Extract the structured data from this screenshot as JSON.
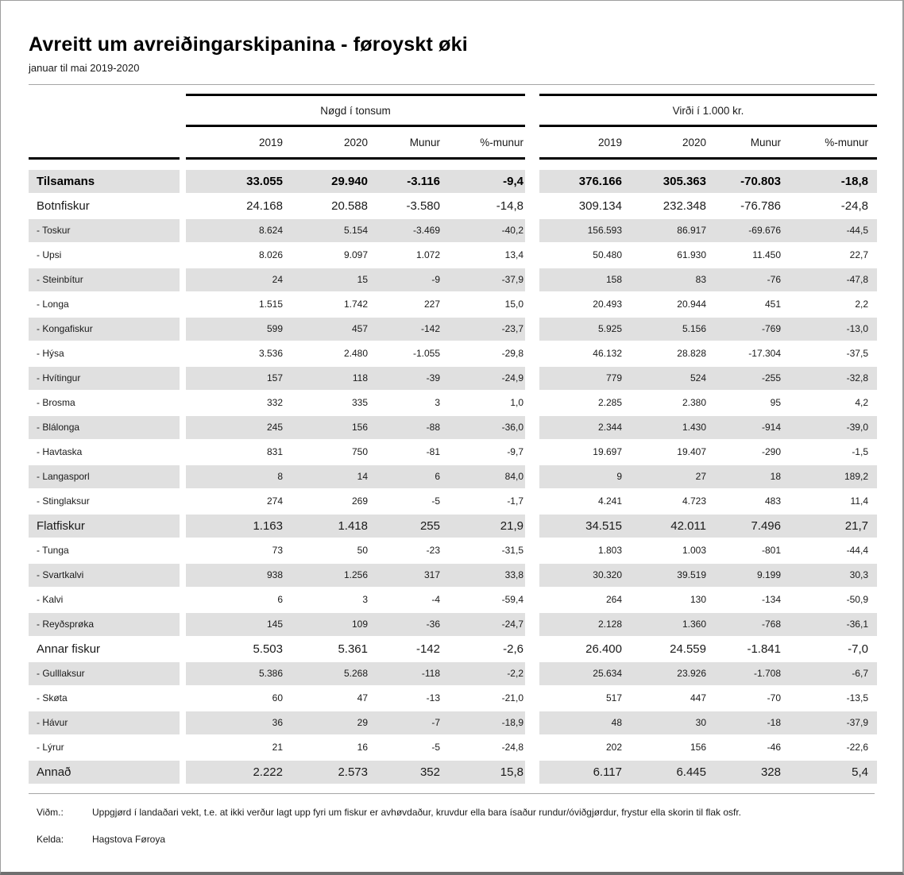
{
  "chart_data": {
    "type": "table",
    "title": "Avreitt um avreiðingarskipanina - føroyskt øki",
    "subtitle": "januar til mai 2019-2020",
    "column_groups": [
      {
        "label": "Nøgd í tonsum",
        "columns": [
          "2019",
          "2020",
          "Munur",
          "%-munur"
        ]
      },
      {
        "label": "Virði í 1.000 kr.",
        "columns": [
          "2019",
          "2020",
          "Munur",
          "%-munur"
        ]
      }
    ],
    "rows": [
      {
        "label": "Tilsamans",
        "level": "total",
        "values": [
          "33.055",
          "29.940",
          "-3.116",
          "-9,4",
          "376.166",
          "305.363",
          "-70.803",
          "-18,8"
        ]
      },
      {
        "label": "Botnfiskur",
        "level": "major",
        "values": [
          "24.168",
          "20.588",
          "-3.580",
          "-14,8",
          "309.134",
          "232.348",
          "-76.786",
          "-24,8"
        ]
      },
      {
        "label": "- Toskur",
        "level": "sub",
        "values": [
          "8.624",
          "5.154",
          "-3.469",
          "-40,2",
          "156.593",
          "86.917",
          "-69.676",
          "-44,5"
        ]
      },
      {
        "label": "- Upsi",
        "level": "sub",
        "values": [
          "8.026",
          "9.097",
          "1.072",
          "13,4",
          "50.480",
          "61.930",
          "11.450",
          "22,7"
        ]
      },
      {
        "label": "- Steinbítur",
        "level": "sub",
        "values": [
          "24",
          "15",
          "-9",
          "-37,9",
          "158",
          "83",
          "-76",
          "-47,8"
        ]
      },
      {
        "label": "- Longa",
        "level": "sub",
        "values": [
          "1.515",
          "1.742",
          "227",
          "15,0",
          "20.493",
          "20.944",
          "451",
          "2,2"
        ]
      },
      {
        "label": "- Kongafiskur",
        "level": "sub",
        "values": [
          "599",
          "457",
          "-142",
          "-23,7",
          "5.925",
          "5.156",
          "-769",
          "-13,0"
        ]
      },
      {
        "label": "- Hýsa",
        "level": "sub",
        "values": [
          "3.536",
          "2.480",
          "-1.055",
          "-29,8",
          "46.132",
          "28.828",
          "-17.304",
          "-37,5"
        ]
      },
      {
        "label": "- Hvítingur",
        "level": "sub",
        "values": [
          "157",
          "118",
          "-39",
          "-24,9",
          "779",
          "524",
          "-255",
          "-32,8"
        ]
      },
      {
        "label": "- Brosma",
        "level": "sub",
        "values": [
          "332",
          "335",
          "3",
          "1,0",
          "2.285",
          "2.380",
          "95",
          "4,2"
        ]
      },
      {
        "label": "- Blálonga",
        "level": "sub",
        "values": [
          "245",
          "156",
          "-88",
          "-36,0",
          "2.344",
          "1.430",
          "-914",
          "-39,0"
        ]
      },
      {
        "label": "- Havtaska",
        "level": "sub",
        "values": [
          "831",
          "750",
          "-81",
          "-9,7",
          "19.697",
          "19.407",
          "-290",
          "-1,5"
        ]
      },
      {
        "label": "- Langasporl",
        "level": "sub",
        "values": [
          "8",
          "14",
          "6",
          "84,0",
          "9",
          "27",
          "18",
          "189,2"
        ]
      },
      {
        "label": "- Stinglaksur",
        "level": "sub",
        "values": [
          "274",
          "269",
          "-5",
          "-1,7",
          "4.241",
          "4.723",
          "483",
          "11,4"
        ]
      },
      {
        "label": "Flatfiskur",
        "level": "major",
        "values": [
          "1.163",
          "1.418",
          "255",
          "21,9",
          "34.515",
          "42.011",
          "7.496",
          "21,7"
        ]
      },
      {
        "label": "- Tunga",
        "level": "sub",
        "values": [
          "73",
          "50",
          "-23",
          "-31,5",
          "1.803",
          "1.003",
          "-801",
          "-44,4"
        ]
      },
      {
        "label": "- Svartkalvi",
        "level": "sub",
        "values": [
          "938",
          "1.256",
          "317",
          "33,8",
          "30.320",
          "39.519",
          "9.199",
          "30,3"
        ]
      },
      {
        "label": "- Kalvi",
        "level": "sub",
        "values": [
          "6",
          "3",
          "-4",
          "-59,4",
          "264",
          "130",
          "-134",
          "-50,9"
        ]
      },
      {
        "label": "- Reyðsprøka",
        "level": "sub",
        "values": [
          "145",
          "109",
          "-36",
          "-24,7",
          "2.128",
          "1.360",
          "-768",
          "-36,1"
        ]
      },
      {
        "label": "Annar fiskur",
        "level": "major",
        "values": [
          "5.503",
          "5.361",
          "-142",
          "-2,6",
          "26.400",
          "24.559",
          "-1.841",
          "-7,0"
        ]
      },
      {
        "label": "- Gulllaksur",
        "level": "sub",
        "values": [
          "5.386",
          "5.268",
          "-118",
          "-2,2",
          "25.634",
          "23.926",
          "-1.708",
          "-6,7"
        ]
      },
      {
        "label": "- Skøta",
        "level": "sub",
        "values": [
          "60",
          "47",
          "-13",
          "-21,0",
          "517",
          "447",
          "-70",
          "-13,5"
        ]
      },
      {
        "label": "- Hávur",
        "level": "sub",
        "values": [
          "36",
          "29",
          "-7",
          "-18,9",
          "48",
          "30",
          "-18",
          "-37,9"
        ]
      },
      {
        "label": "- Lýrur",
        "level": "sub",
        "values": [
          "21",
          "16",
          "-5",
          "-24,8",
          "202",
          "156",
          "-46",
          "-22,6"
        ]
      },
      {
        "label": "Annað",
        "level": "major",
        "values": [
          "2.222",
          "2.573",
          "352",
          "15,8",
          "6.117",
          "6.445",
          "328",
          "5,4"
        ]
      }
    ]
  },
  "footer": {
    "note_label": "Viðm.:",
    "note_text": "Uppgjørd í landaðari vekt, t.e. at ikki verður lagt upp fyri um fiskur er avhøvdaður, kruvdur ella bara ísaður rundur/óviðgjørdur, frystur ella skorin til flak osfr.",
    "source_label": "Kelda:",
    "source_text": "Hagstova Føroya"
  },
  "colors": {
    "stripe": "#e0e0e0",
    "rule_dark": "#000000",
    "rule_light": "#a6a6a6",
    "frame_border": "#9e9e9e"
  }
}
